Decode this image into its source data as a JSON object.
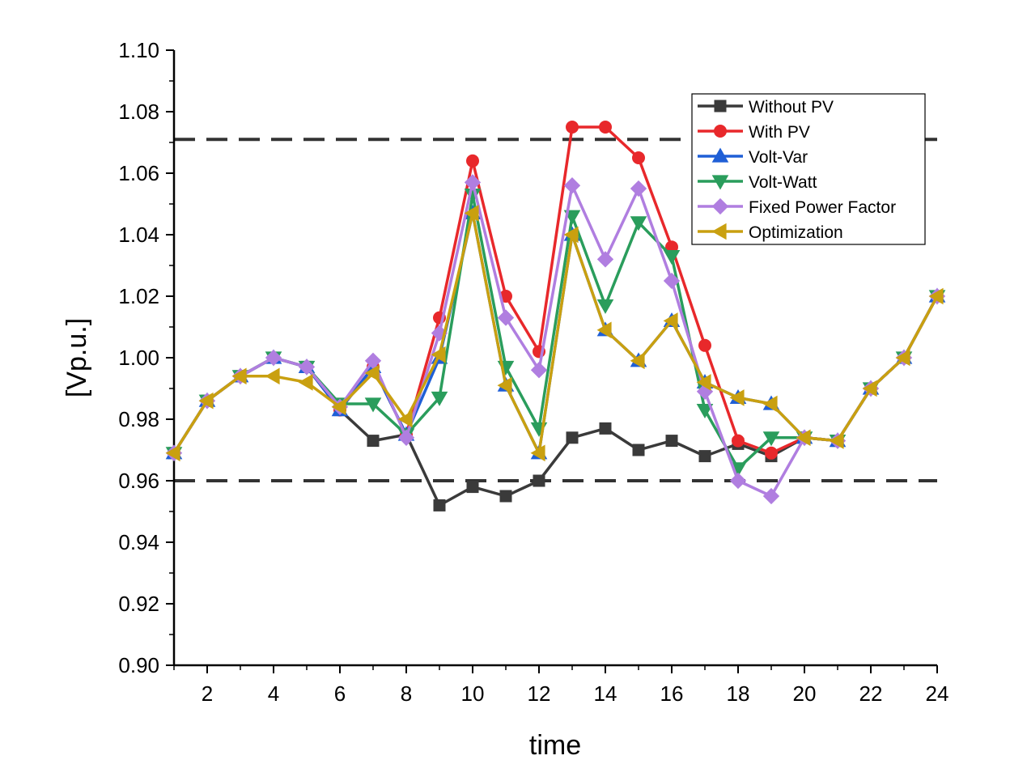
{
  "chart_data": {
    "type": "line",
    "title": "",
    "xlabel": "time",
    "ylabel": "[Vp.u.]",
    "xlim": [
      1,
      24
    ],
    "ylim": [
      0.9,
      1.1
    ],
    "x_ticks": [
      2,
      4,
      6,
      8,
      10,
      12,
      14,
      16,
      18,
      20,
      22,
      24
    ],
    "y_ticks": [
      0.9,
      0.92,
      0.94,
      0.96,
      0.98,
      1.0,
      1.02,
      1.04,
      1.06,
      1.08,
      1.1
    ],
    "y_tick_labels": [
      "0.90",
      "0.92",
      "0.94",
      "0.96",
      "0.98",
      "1.00",
      "1.02",
      "1.04",
      "1.06",
      "1.08",
      "1.10"
    ],
    "x": [
      1,
      2,
      3,
      4,
      5,
      6,
      7,
      8,
      9,
      10,
      11,
      12,
      13,
      14,
      15,
      16,
      17,
      18,
      19,
      20,
      21,
      22,
      23,
      24
    ],
    "limit_lines": [
      1.071,
      0.96
    ],
    "grid": false,
    "legend_position": "top-right",
    "series": [
      {
        "name": "Without PV",
        "color": "#3a3a3a",
        "marker": "square",
        "values": [
          0.969,
          0.986,
          0.994,
          1.0,
          0.997,
          0.983,
          0.973,
          0.975,
          0.952,
          0.958,
          0.955,
          0.96,
          0.974,
          0.977,
          0.97,
          0.973,
          0.968,
          0.972,
          0.968,
          0.974,
          0.973,
          0.99,
          1.0,
          1.02
        ]
      },
      {
        "name": "With PV",
        "color": "#e8282b",
        "marker": "circle",
        "values": [
          0.969,
          0.986,
          0.994,
          1.0,
          0.997,
          0.983,
          0.997,
          0.975,
          1.013,
          1.064,
          1.02,
          1.002,
          1.075,
          1.075,
          1.065,
          1.036,
          1.004,
          0.973,
          0.969,
          0.974,
          0.973,
          0.99,
          1.0,
          1.02
        ]
      },
      {
        "name": "Volt-Var",
        "color": "#1f5fd6",
        "marker": "triangle-up",
        "values": [
          0.969,
          0.986,
          0.994,
          1.0,
          0.997,
          0.983,
          0.997,
          0.975,
          1.0,
          1.047,
          0.991,
          0.969,
          1.04,
          1.009,
          0.999,
          1.012,
          0.992,
          0.987,
          0.985,
          0.974,
          0.973,
          0.99,
          1.0,
          1.02
        ]
      },
      {
        "name": "Volt-Watt",
        "color": "#2a9d5c",
        "marker": "triangle-down",
        "values": [
          0.969,
          0.986,
          0.994,
          1.0,
          0.997,
          0.985,
          0.985,
          0.975,
          0.987,
          1.053,
          0.997,
          0.977,
          1.046,
          1.017,
          1.044,
          1.033,
          0.983,
          0.964,
          0.974,
          0.974,
          0.973,
          0.99,
          1.0,
          1.02
        ]
      },
      {
        "name": "Fixed Power Factor",
        "color": "#b07ee0",
        "marker": "diamond",
        "values": [
          0.969,
          0.986,
          0.994,
          1.0,
          0.997,
          0.984,
          0.999,
          0.974,
          1.008,
          1.057,
          1.013,
          0.996,
          1.056,
          1.032,
          1.055,
          1.025,
          0.989,
          0.96,
          0.955,
          0.974,
          0.973,
          0.99,
          1.0,
          1.02
        ]
      },
      {
        "name": "Optimization",
        "color": "#c9a010",
        "marker": "triangle-left",
        "values": [
          0.969,
          0.986,
          0.994,
          0.994,
          0.992,
          0.984,
          0.995,
          0.98,
          1.001,
          1.047,
          0.991,
          0.969,
          1.04,
          1.009,
          0.999,
          1.012,
          0.992,
          0.987,
          0.985,
          0.974,
          0.973,
          0.99,
          1.0,
          1.02
        ]
      }
    ]
  }
}
